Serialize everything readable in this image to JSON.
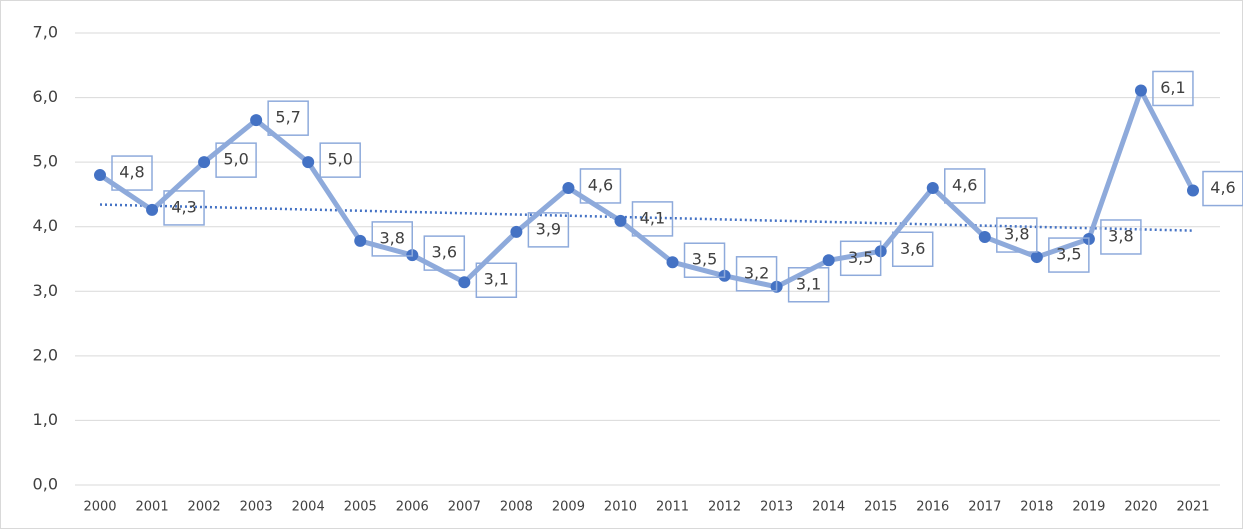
{
  "chart_data": {
    "type": "line",
    "categories": [
      "2000",
      "2001",
      "2002",
      "2003",
      "2004",
      "2005",
      "2006",
      "2007",
      "2008",
      "2009",
      "2010",
      "2011",
      "2012",
      "2013",
      "2014",
      "2015",
      "2016",
      "2017",
      "2018",
      "2019",
      "2020",
      "2021"
    ],
    "values": [
      4.8,
      4.26,
      5.0,
      5.65,
      5.0,
      3.78,
      3.56,
      3.14,
      3.92,
      4.6,
      4.09,
      3.45,
      3.24,
      3.07,
      3.48,
      3.62,
      4.6,
      3.84,
      3.53,
      3.81,
      6.11,
      4.56
    ],
    "value_labels": [
      "4,8",
      "4,3",
      "5,0",
      "5,7",
      "5,0",
      "3,8",
      "3,6",
      "3,1",
      "3,9",
      "4,6",
      "4,1",
      "3,5",
      "3,2",
      "3,1",
      "3,5",
      "3,6",
      "4,6",
      "3,8",
      "3,5",
      "3,8",
      "6,1",
      "4,6"
    ],
    "color": "#8eaadb",
    "marker_color": "#4472c4",
    "trendline": true,
    "trendline_color": "#4472c4",
    "ylim": [
      0,
      7
    ],
    "yticks": [
      {
        "value": 0,
        "label": "0,0"
      },
      {
        "value": 1,
        "label": "1,0"
      },
      {
        "value": 2,
        "label": "2,0"
      },
      {
        "value": 3,
        "label": "3,0"
      },
      {
        "value": 4,
        "label": "4,0"
      },
      {
        "value": 5,
        "label": "5,0"
      },
      {
        "value": 6,
        "label": "6,0"
      },
      {
        "value": 7,
        "label": "7,0"
      }
    ],
    "grid": true
  }
}
